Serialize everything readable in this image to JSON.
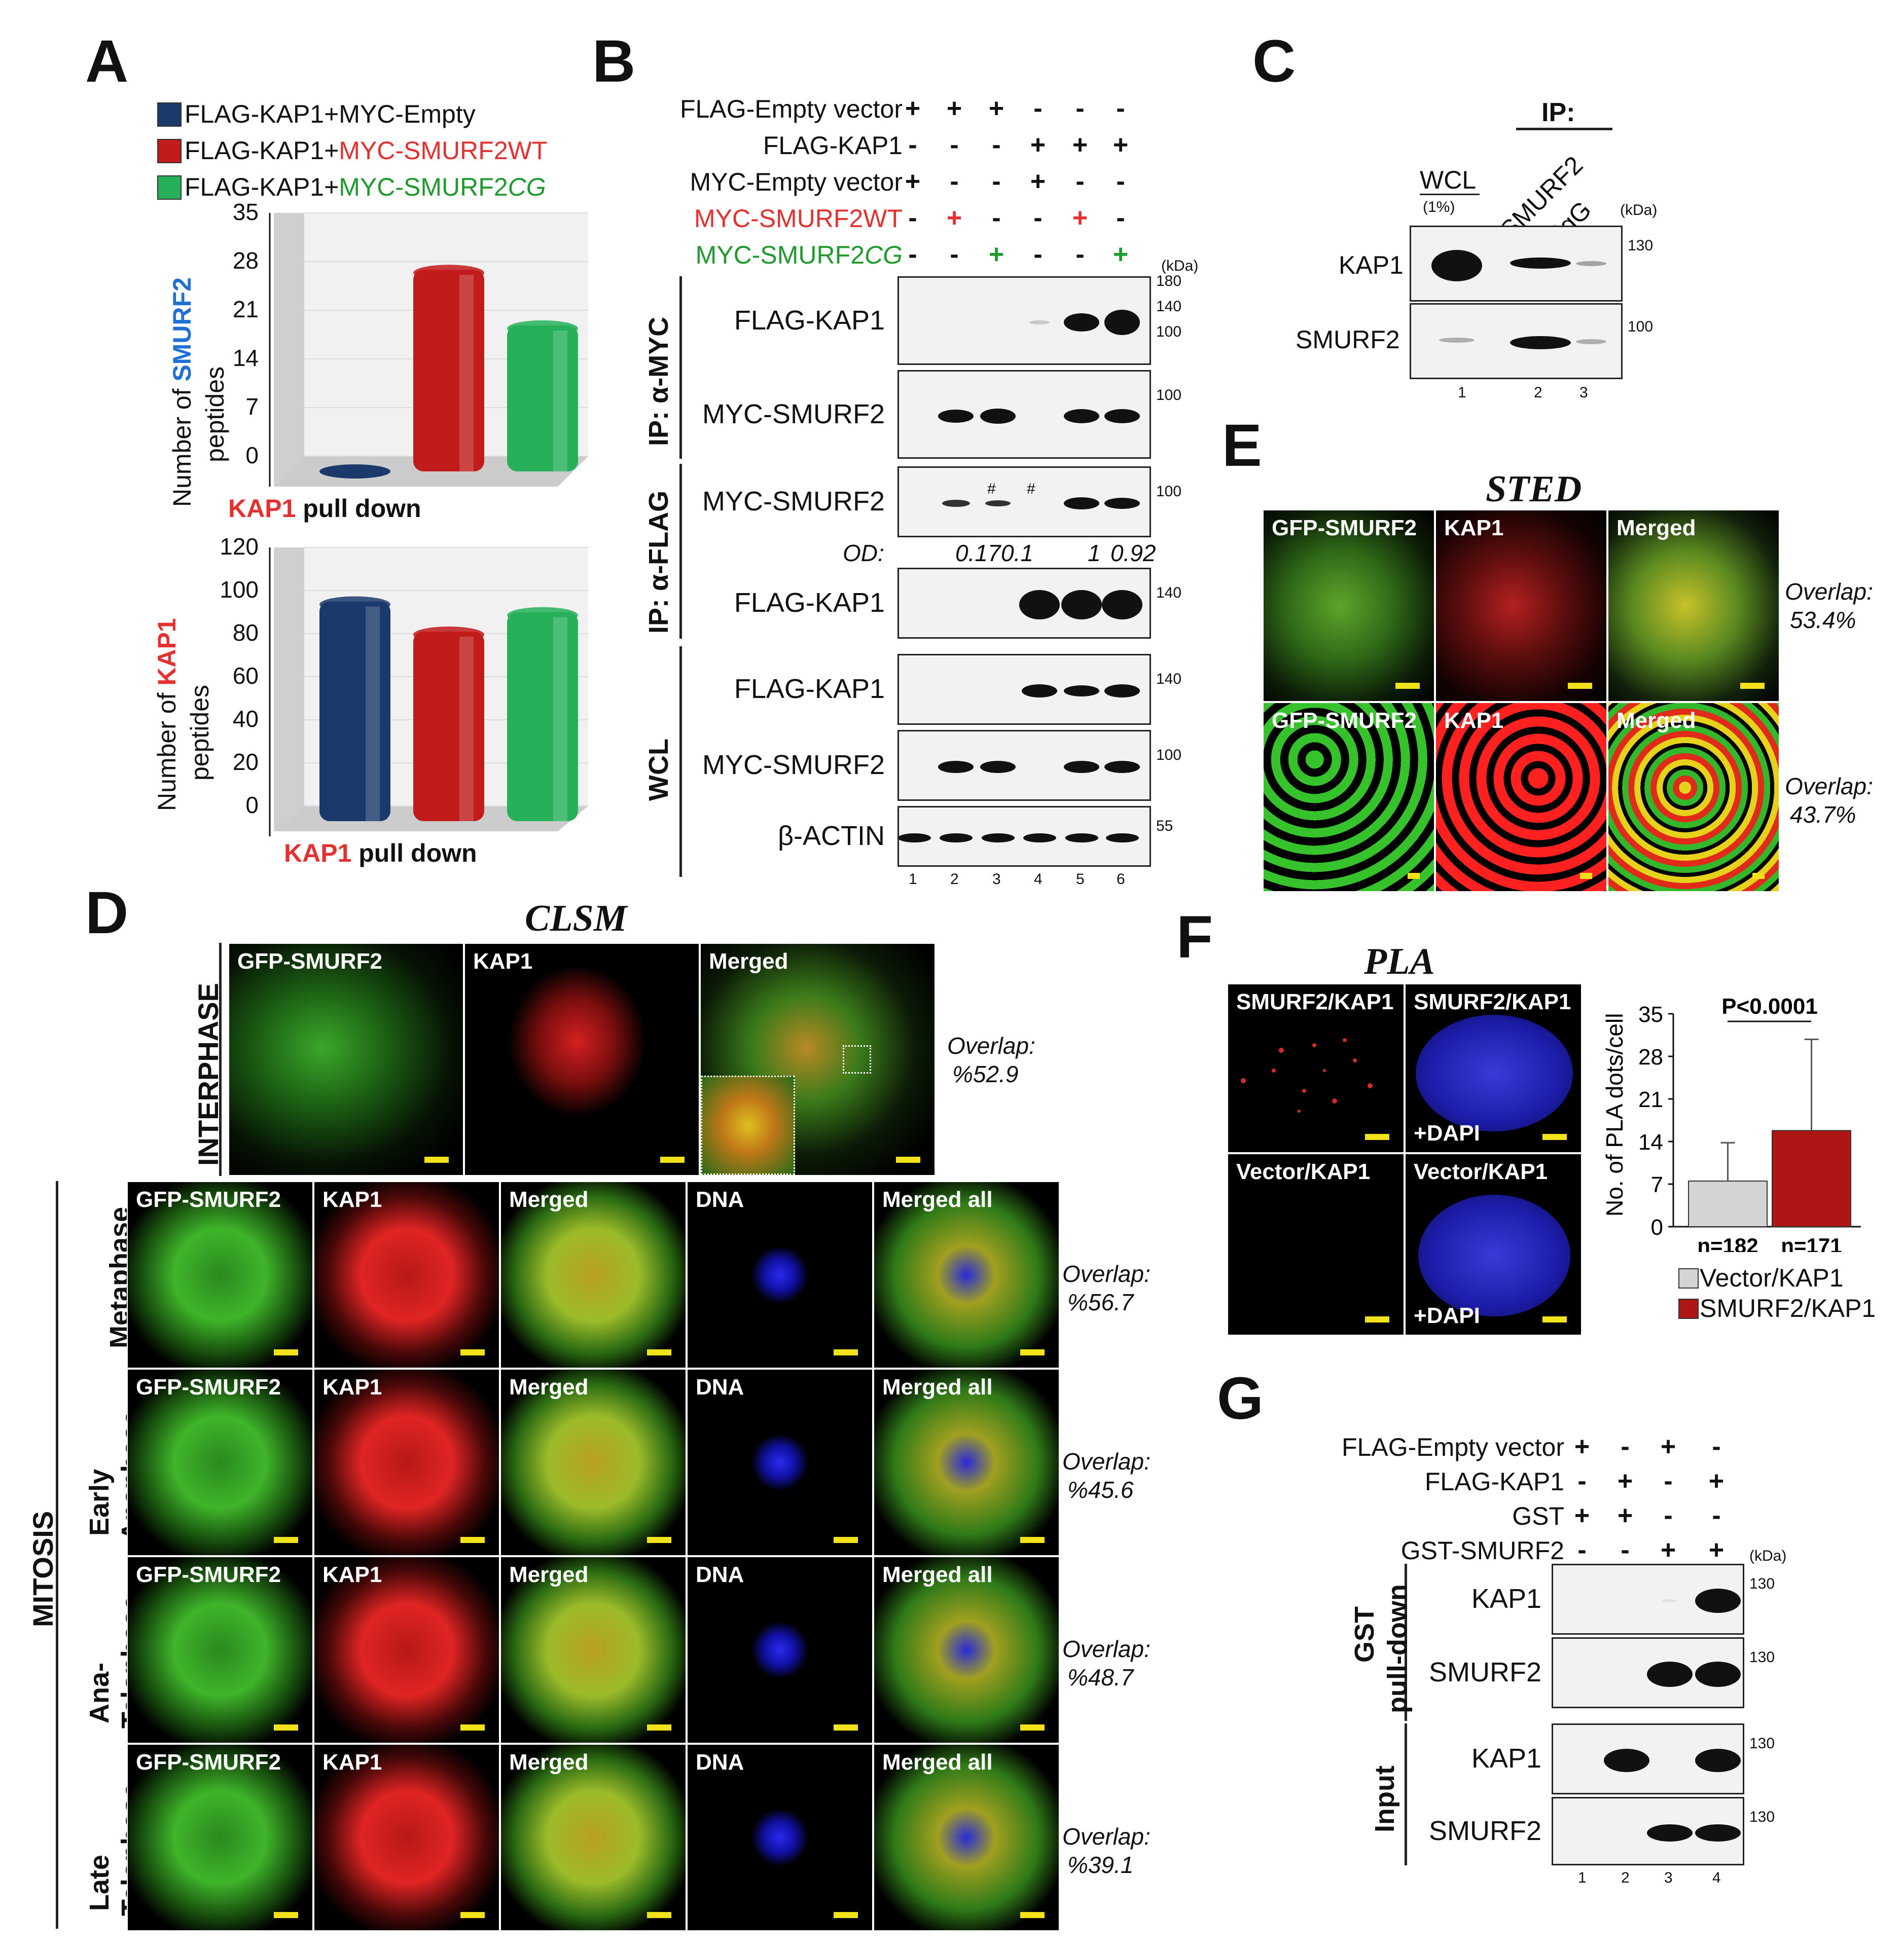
{
  "panels": {
    "A": "A",
    "B": "B",
    "C": "C",
    "D": "D",
    "E": "E",
    "F": "F",
    "G": "G"
  },
  "panelA": {
    "legend": [
      {
        "pre": "FLAG-KAP1+MYC-Empty",
        "post": "",
        "color": "#1b3a6b"
      },
      {
        "pre": "FLAG-KAP1+",
        "post": "MYC-SMURF2WT",
        "color": "#c21b1b"
      },
      {
        "pre": "FLAG-KAP1+",
        "post": "MYC-SMURF2",
        "post_it": "CG",
        "color": "#27b05a"
      }
    ],
    "xlabel_red": "KAP1",
    "xlabel_rest": " pull down",
    "top_ylabel_a": "Number of ",
    "top_ylabel_b": "SMURF2",
    "top_ylabel_c": "peptides",
    "bot_ylabel_a": "Number of ",
    "bot_ylabel_b": "KAP1",
    "bot_ylabel_c": "peptides"
  },
  "chart_data": [
    {
      "type": "bar",
      "title": "",
      "ylabel": "Number of SMURF2 peptides",
      "xlabel": "KAP1 pull down",
      "categories": [
        "FLAG-KAP1+MYC-Empty",
        "FLAG-KAP1+MYC-SMURF2WT",
        "FLAG-KAP1+MYC-SMURF2CG"
      ],
      "values": [
        0,
        29,
        21
      ],
      "ylim": [
        0,
        35
      ],
      "yticks": [
        "0",
        "7",
        "14",
        "21",
        "28",
        "35"
      ],
      "colors": [
        "#1b3a6b",
        "#c21b1b",
        "#27b05a"
      ]
    },
    {
      "type": "bar",
      "title": "",
      "ylabel": "Number of KAP1 peptides",
      "xlabel": "KAP1 pull down",
      "categories": [
        "FLAG-KAP1+MYC-Empty",
        "FLAG-KAP1+MYC-SMURF2WT",
        "FLAG-KAP1+MYC-SMURF2CG"
      ],
      "values": [
        102,
        88,
        97
      ],
      "ylim": [
        0,
        120
      ],
      "yticks": [
        "0",
        "20",
        "40",
        "60",
        "80",
        "100",
        "120"
      ],
      "colors": [
        "#1b3a6b",
        "#c21b1b",
        "#27b05a"
      ]
    },
    {
      "type": "bar",
      "title": "",
      "ylabel": "No. of PLA dots/cell",
      "xlabel": "",
      "categories": [
        "Vector/KAP1",
        "SMURF2/KAP1"
      ],
      "values": [
        7.5,
        15.8
      ],
      "errors": [
        6.3,
        15
      ],
      "ylim": [
        0,
        35
      ],
      "yticks": [
        "0",
        "7",
        "14",
        "21",
        "28",
        "35"
      ],
      "n_labels": [
        "n=182",
        "n=171"
      ],
      "pvalue": "P<0.0001",
      "colors": [
        "#d4d4d4",
        "#b01515"
      ]
    }
  ],
  "panelB": {
    "rows": [
      {
        "label": "FLAG-Empty vector",
        "marks": [
          "+",
          "+",
          "+",
          "-",
          "-",
          "-"
        ],
        "color": "#111"
      },
      {
        "label": "FLAG-KAP1",
        "marks": [
          "-",
          "-",
          "-",
          "+",
          "+",
          "+"
        ],
        "color": "#111"
      },
      {
        "label": "MYC-Empty vector",
        "marks": [
          "+",
          "-",
          "-",
          "+",
          "-",
          "-"
        ],
        "color": "#111"
      },
      {
        "label": "MYC-SMURF2WT",
        "marks": [
          "-",
          "+",
          "-",
          "-",
          "+",
          "-"
        ],
        "color": "#e53030"
      },
      {
        "label": "MYC-SMURF2",
        "label_it": "CG",
        "marks": [
          "-",
          "-",
          "+",
          "-",
          "-",
          "+"
        ],
        "color": "#1f9a2e"
      }
    ],
    "kda": "(kDa)",
    "groups": [
      "IP: α-MYC",
      "IP: α-FLAG",
      "WCL"
    ],
    "blots": [
      {
        "label": "FLAG-KAP1",
        "markers": [
          "180",
          "140",
          "100"
        ]
      },
      {
        "label": "MYC-SMURF2",
        "markers": [
          "100"
        ]
      },
      {
        "label": "MYC-SMURF2",
        "markers": [
          "100"
        ]
      },
      {
        "label": "FLAG-KAP1",
        "markers": [
          "140"
        ]
      },
      {
        "label": "FLAG-KAP1",
        "markers": [
          "140"
        ]
      },
      {
        "label": "MYC-SMURF2",
        "markers": [
          "100"
        ]
      },
      {
        "label": "β-ACTIN",
        "markers": [
          "55"
        ]
      }
    ],
    "hash": "#",
    "od_label": "OD:",
    "od_values": [
      "0.17",
      "0.1",
      "1",
      "0.92"
    ],
    "lanes": [
      "1",
      "2",
      "3",
      "4",
      "5",
      "6"
    ]
  },
  "panelC": {
    "ip": "IP:",
    "wcl": "WCL",
    "wcl_sub": "(1%)",
    "lanes_h": [
      "SMURF2",
      "IgG"
    ],
    "kda": "(kDa)",
    "blots": [
      {
        "label": "KAP1",
        "marker": "130"
      },
      {
        "label": "SMURF2",
        "marker": "100"
      }
    ],
    "lanes": [
      "1",
      "2",
      "3"
    ]
  },
  "panelD": {
    "title": "CLSM",
    "interphase": "INTERPHASE",
    "mitosis": "MITOSIS",
    "inter_tiles": [
      "GFP-SMURF2",
      "KAP1",
      "Merged"
    ],
    "inter_overlap": [
      "Overlap:",
      "%52.9"
    ],
    "mit_rows": [
      {
        "stage": [
          "Metaphase"
        ],
        "overlap": [
          "Overlap:",
          "%56.7"
        ]
      },
      {
        "stage": [
          "Early",
          "Anaphase"
        ],
        "overlap": [
          "Overlap:",
          "%45.6"
        ]
      },
      {
        "stage": [
          "Ana-",
          "Telophase"
        ],
        "overlap": [
          "Overlap:",
          "%48.7"
        ]
      },
      {
        "stage": [
          "Late",
          "Telophase"
        ],
        "overlap": [
          "Overlap:",
          "%39.1"
        ]
      }
    ],
    "mit_tiles": [
      "GFP-SMURF2",
      "KAP1",
      "Merged",
      "DNA",
      "Merged all"
    ]
  },
  "panelE": {
    "title": "STED",
    "tiles": [
      "GFP-SMURF2",
      "KAP1",
      "Merged"
    ],
    "overlaps": [
      [
        "Overlap:",
        "53.4%"
      ],
      [
        "Overlap:",
        "43.7%"
      ]
    ]
  },
  "panelF": {
    "title": "PLA",
    "tiles": [
      "SMURF2/KAP1",
      "SMURF2/KAP1",
      "Vector/KAP1",
      "Vector/KAP1"
    ],
    "dapi": "+DAPI",
    "legend": [
      "Vector/KAP1",
      "SMURF2/KAP1"
    ]
  },
  "panelG": {
    "rows": [
      {
        "label": "FLAG-Empty vector",
        "marks": [
          "+",
          "-",
          "+",
          "-"
        ]
      },
      {
        "label": "FLAG-KAP1",
        "marks": [
          "-",
          "+",
          "-",
          "+"
        ]
      },
      {
        "label": "GST",
        "marks": [
          "+",
          "+",
          "-",
          "-"
        ]
      },
      {
        "label": "GST-SMURF2",
        "marks": [
          "-",
          "-",
          "+",
          "+"
        ]
      }
    ],
    "kda": "(kDa)",
    "groups": [
      [
        "GST",
        "pull-down"
      ],
      [
        "Input"
      ]
    ],
    "blots": [
      {
        "label": "KAP1",
        "marker": "130"
      },
      {
        "label": "SMURF2",
        "marker": "130"
      },
      {
        "label": "KAP1",
        "marker": "130"
      },
      {
        "label": "SMURF2",
        "marker": "130"
      }
    ],
    "lanes": [
      "1",
      "2",
      "3",
      "4"
    ]
  }
}
